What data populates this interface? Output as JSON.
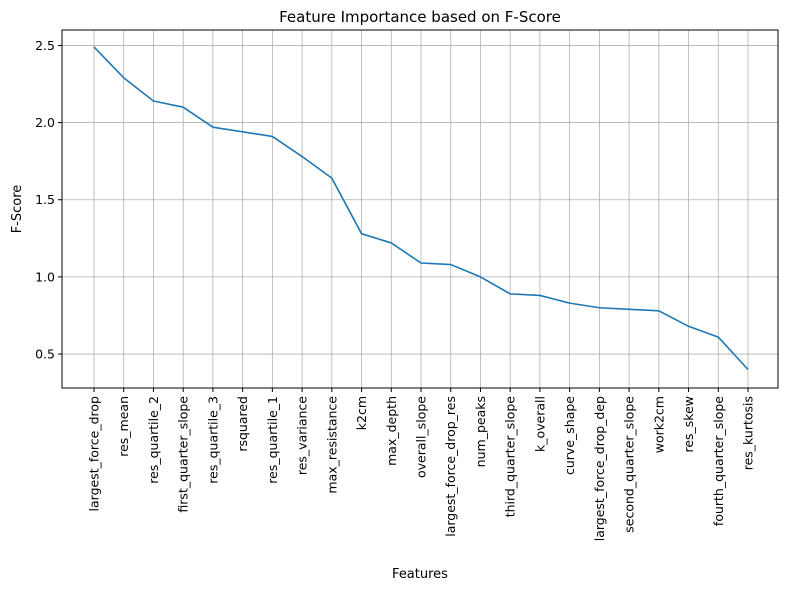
{
  "chart_data": {
    "type": "line",
    "title": "Feature Importance based on F-Score",
    "xlabel": "Features",
    "ylabel": "F-Score",
    "ylim": [
      0.28,
      2.6
    ],
    "yticks": [
      0.5,
      1.0,
      1.5,
      2.0,
      2.5
    ],
    "ytick_labels": [
      "0.5",
      "1.0",
      "1.5",
      "2.0",
      "2.5"
    ],
    "grid": true,
    "line_color": "#1f77b4",
    "categories": [
      "largest_force_drop",
      "res_mean",
      "res_quartile_2",
      "first_quarter_slope",
      "res_quartile_3",
      "rsquared",
      "res_quartile_1",
      "res_variance",
      "max_resistance",
      "k2cm",
      "max_depth",
      "overall_slope",
      "largest_force_drop_res",
      "num_peaks",
      "third_quarter_slope",
      "k_overall",
      "curve_shape",
      "largest_force_drop_dep",
      "second_quarter_slope",
      "work2cm",
      "res_skew",
      "fourth_quarter_slope",
      "res_kurtosis"
    ],
    "values": [
      2.49,
      2.29,
      2.14,
      2.1,
      1.97,
      1.94,
      1.91,
      1.78,
      1.64,
      1.28,
      1.22,
      1.09,
      1.08,
      1.0,
      0.89,
      0.88,
      0.83,
      0.8,
      0.79,
      0.78,
      0.68,
      0.61,
      0.4
    ]
  }
}
